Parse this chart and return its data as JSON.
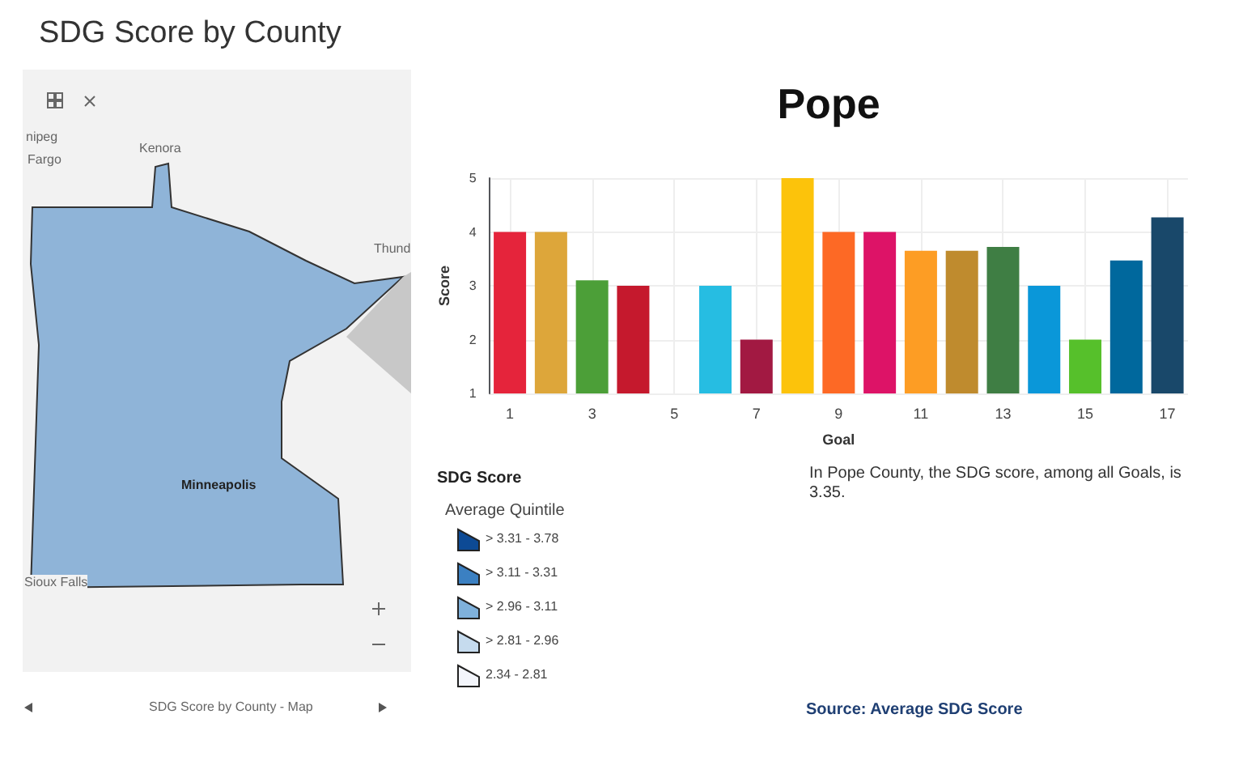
{
  "chart_data": [
    {
      "type": "bar",
      "title": "Pope",
      "xlabel": "Goal",
      "ylabel": "Score",
      "x": [
        1,
        2,
        3,
        4,
        5,
        6,
        7,
        8,
        9,
        10,
        11,
        12,
        13,
        14,
        15,
        16,
        17
      ],
      "xlim": [
        0.5,
        17.5
      ],
      "xticks": [
        1,
        3,
        5,
        7,
        9,
        11,
        13,
        15,
        17
      ],
      "values": [
        4,
        4,
        3.1,
        3,
        null,
        3,
        2,
        5,
        4,
        4,
        3.65,
        3.65,
        3.72,
        3,
        2,
        3.47,
        4.27
      ],
      "colors": [
        "#e5243b",
        "#dda63a",
        "#4c9f38",
        "#c5192d",
        "#ff3a21",
        "#26bde2",
        "#a21942",
        "#fcc30b",
        "#fd6925",
        "#dd1367",
        "#fd9d24",
        "#bf8b2e",
        "#3f7e44",
        "#0a97d9",
        "#56c02b",
        "#00689d",
        "#19486a"
      ],
      "ylim": [
        1,
        5
      ],
      "yticks": [
        1,
        2,
        3,
        4,
        5
      ],
      "grid": true,
      "annotations": [
        "In Pope County, the SDG score, among all Goals, is 3.35.",
        "Source: Average SDG Score"
      ]
    },
    {
      "type": "other",
      "title": "SDG Score by County",
      "annotations": [
        "nipeg",
        "Kenora",
        "Thund",
        "Fargo",
        "Minneapolis",
        "Sioux Falls",
        "SDG Score by County - Map",
        "SDG Score",
        "Average Quintile",
        "> 3.31 - 3.78",
        "> 3.11 - 3.31",
        "> 2.96 - 3.11",
        "> 2.81 - 2.96",
        "2.34 - 2.81"
      ]
    }
  ]
}
